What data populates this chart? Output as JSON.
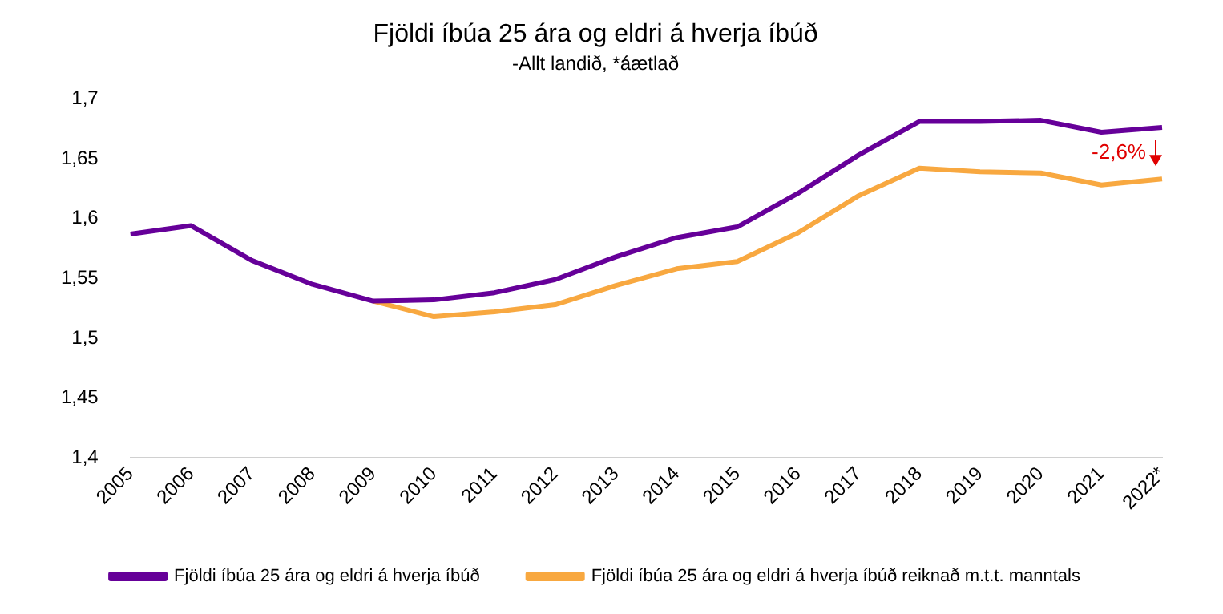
{
  "chart_data": {
    "type": "line",
    "title": "Fjöldi íbúa 25 ára og eldri á hverja íbúð",
    "subtitle": "-Allt landið, *áætlað",
    "categories": [
      "2005",
      "2006",
      "2007",
      "2008",
      "2009",
      "2010",
      "2011",
      "2012",
      "2013",
      "2014",
      "2015",
      "2016",
      "2017",
      "2018",
      "2019",
      "2020",
      "2021",
      "2022*"
    ],
    "series": [
      {
        "name": "Fjöldi íbúa 25 ára og eldri á hverja íbúð",
        "color": "#660099",
        "values": [
          1.587,
          1.594,
          1.565,
          1.545,
          1.531,
          1.532,
          1.538,
          1.549,
          1.568,
          1.584,
          1.593,
          1.621,
          1.653,
          1.681,
          1.681,
          1.682,
          1.672,
          1.676
        ]
      },
      {
        "name": "Fjöldi íbúa 25 ára og eldri á hverja íbúð reiknað m.t.t. manntals",
        "color": "#f8a840",
        "values": [
          null,
          null,
          null,
          null,
          1.531,
          1.518,
          1.522,
          1.528,
          1.544,
          1.558,
          1.564,
          1.588,
          1.619,
          1.642,
          1.639,
          1.638,
          1.628,
          1.633
        ]
      }
    ],
    "ylim": [
      1.4,
      1.7
    ],
    "yticks": [
      {
        "value": 1.4,
        "label": "1,4"
      },
      {
        "value": 1.45,
        "label": "1,45"
      },
      {
        "value": 1.5,
        "label": "1,5"
      },
      {
        "value": 1.55,
        "label": "1,55"
      },
      {
        "value": 1.6,
        "label": "1,6"
      },
      {
        "value": 1.65,
        "label": "1,65"
      },
      {
        "value": 1.7,
        "label": "1,7"
      }
    ],
    "grid": false,
    "legend": "bottom",
    "marker": "none",
    "line_style": "solid",
    "annotations": [
      "-2,6%"
    ]
  }
}
